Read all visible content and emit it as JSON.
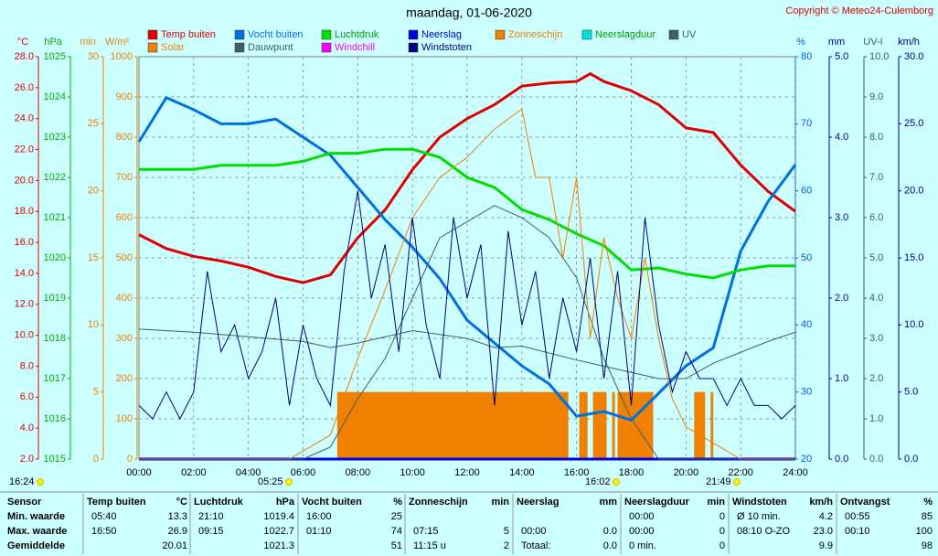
{
  "chart_data": {
    "type": "multi-axis",
    "title": "maandag, 01-06-2020",
    "copyright": "Copyright © Meteo24-Culemborg",
    "grid": true,
    "xlim": [
      0,
      24
    ],
    "xticks": [
      {
        "value": 0,
        "label": "00:00"
      },
      {
        "value": 2,
        "label": "02:00"
      },
      {
        "value": 4,
        "label": "04:00"
      },
      {
        "value": 6,
        "label": "06:00"
      },
      {
        "value": 8,
        "label": "08:00"
      },
      {
        "value": 10,
        "label": "10:00"
      },
      {
        "value": 12,
        "label": "12:00"
      },
      {
        "value": 14,
        "label": "14:00"
      },
      {
        "value": 16,
        "label": "16:00"
      },
      {
        "value": 18,
        "label": "18:00"
      },
      {
        "value": 20,
        "label": "20:00"
      },
      {
        "value": 22,
        "label": "22:00"
      },
      {
        "value": 24,
        "label": "24:00"
      }
    ],
    "axes": [
      {
        "unit": "°C",
        "color": "#e00000",
        "lim": [
          2,
          28
        ],
        "ticks": [
          {
            "value": 2,
            "label": "2.0"
          },
          {
            "value": 4,
            "label": "4.0"
          },
          {
            "value": 6,
            "label": "6.0"
          },
          {
            "value": 8,
            "label": "8.0"
          },
          {
            "value": 10,
            "label": "10.0"
          },
          {
            "value": 12,
            "label": "12.0"
          },
          {
            "value": 14,
            "label": "14.0"
          },
          {
            "value": 16,
            "label": "16.0"
          },
          {
            "value": 18,
            "label": "18.0"
          },
          {
            "value": 20,
            "label": "20.0"
          },
          {
            "value": 22,
            "label": "22.0"
          },
          {
            "value": 24,
            "label": "24.0"
          },
          {
            "value": 26,
            "label": "26.0"
          },
          {
            "value": 28,
            "label": "28.0"
          }
        ]
      },
      {
        "unit": "hPa",
        "color": "#00b000",
        "lim": [
          1015,
          1025
        ],
        "ticks": [
          1015,
          1016,
          1017,
          1018,
          1019,
          1020,
          1021,
          1022,
          1023,
          1024,
          1025
        ]
      },
      {
        "unit": "min",
        "color": "#f08000",
        "lim": [
          0,
          30
        ],
        "ticks": [
          0,
          5,
          10,
          15,
          20,
          25,
          30
        ]
      },
      {
        "unit": "W/m²",
        "color": "#f08000",
        "lim": [
          0,
          1000
        ],
        "ticks": [
          0,
          100,
          200,
          300,
          400,
          500,
          600,
          700,
          800,
          900,
          1000
        ]
      },
      {
        "unit": "%",
        "color": "#0060e0",
        "lim": [
          20,
          80
        ],
        "ticks": [
          20,
          30,
          40,
          50,
          60,
          70,
          80
        ]
      },
      {
        "unit": "mm",
        "color": "#0000a0",
        "lim": [
          0,
          5
        ],
        "ticks": [
          {
            "value": 0,
            "label": "0.0"
          },
          {
            "value": 1,
            "label": "1.0"
          },
          {
            "value": 2,
            "label": "2.0"
          },
          {
            "value": 3,
            "label": "3.0"
          },
          {
            "value": 4,
            "label": "4.0"
          },
          {
            "value": 5,
            "label": "5.0"
          }
        ]
      },
      {
        "unit": "UV-I",
        "color": "#406060",
        "lim": [
          0,
          10
        ],
        "ticks": [
          {
            "value": 0,
            "label": "0.0"
          },
          {
            "value": 1,
            "label": "1.0"
          },
          {
            "value": 2,
            "label": "2.0"
          },
          {
            "value": 3,
            "label": "3.0"
          },
          {
            "value": 4,
            "label": "4.0"
          },
          {
            "value": 5,
            "label": "5.0"
          },
          {
            "value": 6,
            "label": "6.0"
          },
          {
            "value": 7,
            "label": "7.0"
          },
          {
            "value": 8,
            "label": "8.0"
          },
          {
            "value": 9,
            "label": "9.0"
          },
          {
            "value": 10,
            "label": "10.0"
          }
        ]
      },
      {
        "unit": "km/h",
        "color": "#000080",
        "lim": [
          0,
          30
        ],
        "ticks": [
          {
            "value": 0,
            "label": "0.0"
          },
          {
            "value": 5,
            "label": "5.0"
          },
          {
            "value": 10,
            "label": "10.0"
          },
          {
            "value": 15,
            "label": "15.0"
          },
          {
            "value": 20,
            "label": "20.0"
          },
          {
            "value": 25,
            "label": "25.0"
          },
          {
            "value": 30,
            "label": "30.0"
          }
        ]
      }
    ],
    "series": [
      {
        "name": "Temp buiten",
        "color": "#e00000",
        "axis": "°C",
        "x": [
          0,
          1,
          2,
          3,
          4,
          5,
          6,
          7,
          8,
          9,
          10,
          11,
          12,
          13,
          14,
          15,
          16,
          16.5,
          17,
          18,
          19,
          20,
          21,
          22,
          23,
          24
        ],
        "values": [
          16.5,
          15.6,
          15.1,
          14.8,
          14.4,
          13.8,
          13.4,
          13.9,
          16.3,
          18.1,
          20.7,
          22.8,
          24.0,
          24.9,
          26.1,
          26.3,
          26.4,
          26.9,
          26.4,
          25.8,
          24.9,
          23.4,
          23.1,
          21.0,
          19.3,
          18.0
        ]
      },
      {
        "name": "Vocht buiten",
        "color": "#0070e0",
        "axis": "%",
        "x": [
          0,
          1,
          2,
          3,
          4,
          5,
          6,
          7,
          8,
          9,
          10,
          11,
          12,
          13,
          14,
          15,
          16,
          17,
          18,
          19,
          20,
          21,
          22,
          23,
          24
        ],
        "values": [
          67.3,
          73.9,
          72.1,
          70,
          70,
          70.7,
          68,
          65.3,
          60.5,
          55.7,
          51.6,
          46.9,
          40.7,
          37.3,
          33.9,
          31.2,
          26.4,
          27.1,
          25.8,
          29.8,
          33.9,
          36.6,
          51,
          58.4,
          63.9
        ]
      },
      {
        "name": "Luchtdruk",
        "color": "#00e000",
        "axis": "hPa",
        "x": [
          0,
          1,
          2,
          3,
          4,
          5,
          6,
          7,
          8,
          9,
          10,
          11,
          12,
          13,
          14,
          15,
          16,
          17,
          18,
          19,
          20,
          21,
          22,
          23,
          24
        ],
        "values": [
          1022.2,
          1022.2,
          1022.2,
          1022.3,
          1022.3,
          1022.3,
          1022.4,
          1022.6,
          1022.6,
          1022.7,
          1022.7,
          1022.5,
          1022.0,
          1021.75,
          1021.2,
          1020.95,
          1020.6,
          1020.3,
          1019.7,
          1019.75,
          1019.6,
          1019.5,
          1019.7,
          1019.8,
          1019.8
        ]
      },
      {
        "name": "Neerslag",
        "color": "#0000e0",
        "axis": "mm",
        "x": [
          0,
          24
        ],
        "values": [
          0,
          0
        ]
      },
      {
        "name": "Zonneschijn",
        "color": "#f08000",
        "axis": "min",
        "kind": "bar",
        "segments": [
          {
            "start": 7.25,
            "end": 15.7,
            "value": 5
          },
          {
            "start": 16.1,
            "end": 16.4,
            "value": 5
          },
          {
            "start": 16.6,
            "end": 17.1,
            "value": 5
          },
          {
            "start": 17.3,
            "end": 17.4,
            "value": 5
          },
          {
            "start": 17.5,
            "end": 18.8,
            "value": 5
          },
          {
            "start": 20.3,
            "end": 20.7,
            "value": 5
          },
          {
            "start": 20.9,
            "end": 21.0,
            "value": 5
          }
        ]
      },
      {
        "name": "Neerslagduur",
        "color": "#00e0e0",
        "axis": "min"
      },
      {
        "name": "UV",
        "color": "#406060",
        "axis": "UV-I",
        "x": [
          0,
          6,
          7,
          8,
          9,
          10,
          11,
          12,
          13,
          14,
          15,
          16,
          17,
          18,
          19,
          24
        ],
        "values": [
          0,
          0,
          0.3,
          1.5,
          2.5,
          4,
          5.5,
          5.9,
          6.3,
          6.0,
          5.5,
          4.5,
          2.5,
          1,
          0,
          0
        ]
      },
      {
        "name": "Solar",
        "color": "#f08000",
        "axis": "W/m²",
        "x": [
          0,
          5.5,
          6,
          7,
          8,
          9,
          10,
          11,
          12,
          13,
          14,
          14.5,
          15,
          15.5,
          16,
          16.5,
          17,
          17.5,
          18,
          18.5,
          19,
          19.5,
          20,
          21,
          22,
          24
        ],
        "values": [
          0,
          0,
          20,
          60,
          250,
          420,
          600,
          700,
          750,
          820,
          870,
          700,
          700,
          500,
          700,
          300,
          550,
          400,
          300,
          500,
          300,
          150,
          80,
          40,
          0,
          0
        ]
      },
      {
        "name": "Dauwpunt",
        "color": "#406060",
        "axis": "°C",
        "x": [
          0,
          2,
          4,
          6,
          7,
          8,
          10,
          12,
          13,
          14,
          16,
          18,
          19,
          20,
          21,
          22,
          23,
          24
        ],
        "values": [
          10.4,
          10.2,
          9.9,
          9.6,
          9.2,
          9.5,
          10.3,
          9.8,
          9.2,
          9.3,
          8.4,
          7.6,
          7.2,
          7.2,
          8.2,
          8.9,
          9.6,
          10.2
        ]
      },
      {
        "name": "Windchill",
        "color": "#ff00ff",
        "axis": "°C"
      },
      {
        "name": "Windstoten",
        "color": "#000080",
        "axis": "km/h",
        "x": [
          0,
          0.5,
          1,
          1.5,
          2,
          2.5,
          3,
          3.5,
          4,
          4.5,
          5,
          5.5,
          6,
          6.5,
          7,
          7.5,
          8,
          8.5,
          9,
          9.5,
          10,
          10.5,
          11,
          11.5,
          12,
          12.5,
          13,
          13.5,
          14,
          14.5,
          15,
          15.5,
          16,
          16.5,
          17,
          17.5,
          18,
          18.5,
          19,
          19.5,
          20,
          20.5,
          21,
          21.5,
          22,
          22.5,
          23,
          23.5,
          24
        ],
        "values": [
          4,
          3,
          5,
          3,
          5,
          14,
          8,
          10,
          6,
          8,
          12,
          4,
          10,
          6,
          4,
          14,
          20,
          12,
          16,
          8,
          18,
          10,
          6,
          18,
          12,
          16,
          4,
          17,
          10,
          14,
          6,
          12,
          8,
          15,
          6,
          14,
          4,
          18,
          10,
          5,
          8,
          6,
          6,
          4,
          6,
          4,
          4,
          3,
          4
        ]
      }
    ],
    "annotations": [
      "16:24",
      "05:25",
      "16:02",
      "21:49"
    ]
  },
  "table": {
    "row_header": "Sensor",
    "row_labels": [
      "Min. waarde",
      "Max. waarde",
      "Gemiddelde"
    ],
    "groups": [
      {
        "name": "Temp buiten",
        "unit": "°C",
        "rows": [
          [
            "05:40",
            "13.3"
          ],
          [
            "16:50",
            "26.9"
          ],
          [
            null,
            "20.01"
          ]
        ]
      },
      {
        "name": "Luchtdruk",
        "unit": "hPa",
        "rows": [
          [
            "21:10",
            "1019.4"
          ],
          [
            "09:15",
            "1022.7"
          ],
          [
            null,
            "1021.3"
          ]
        ]
      },
      {
        "name": "Vocht buiten",
        "unit": "%",
        "rows": [
          [
            "16:00",
            "25"
          ],
          [
            "01:10",
            "74"
          ],
          [
            null,
            "51"
          ]
        ]
      },
      {
        "name": "Zonneschijn",
        "unit": "min",
        "rows": [
          [
            null,
            null
          ],
          [
            "07:15",
            "5"
          ],
          [
            "11:15 u",
            "2"
          ]
        ]
      },
      {
        "name": "Neerslag",
        "unit": "mm",
        "rows": [
          [
            null,
            null
          ],
          [
            "00:00",
            "0.0"
          ],
          [
            "Totaal:",
            "0.0"
          ]
        ]
      },
      {
        "name": "Neerslagduur",
        "unit": "min",
        "rows": [
          [
            "00:00",
            "0"
          ],
          [
            "00:00",
            "0"
          ],
          [
            "0 min.",
            "0"
          ]
        ]
      },
      {
        "name": "Windstoten",
        "unit": "km/h",
        "rows": [
          [
            "Ø 10 min.",
            "4.2"
          ],
          [
            "08:10  O-ZO",
            "23.0"
          ],
          [
            null,
            "9.9"
          ]
        ]
      },
      {
        "name": "Ontvangst",
        "unit": "%",
        "rows": [
          [
            "00:55",
            "85"
          ],
          [
            "00:10",
            "100"
          ],
          [
            null,
            "98"
          ]
        ]
      }
    ]
  }
}
